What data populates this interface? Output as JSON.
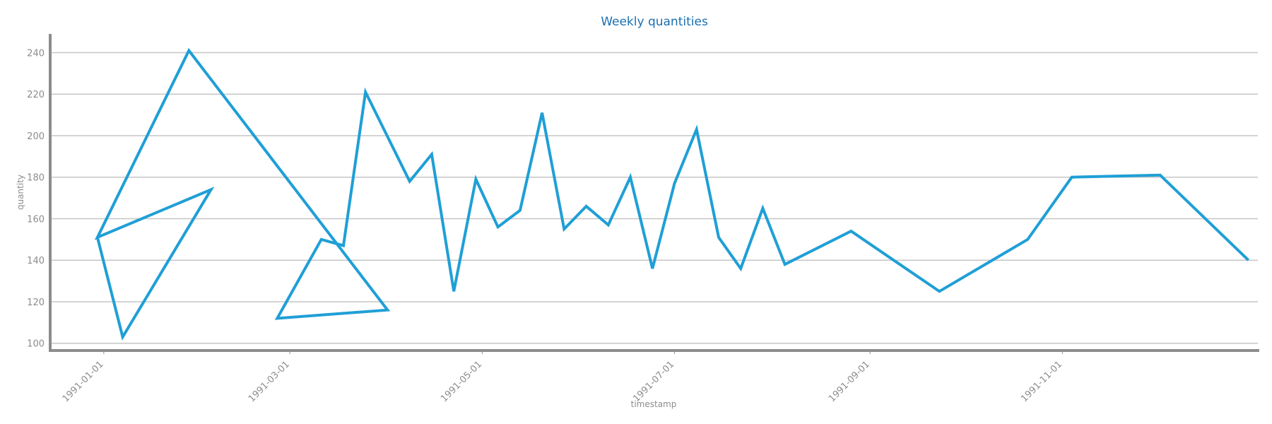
{
  "colors": {
    "series": "#1f9fd6",
    "title": "#1a70b0",
    "axis": "#8c8c8c",
    "grid": "#c6c6c6"
  },
  "chart_data": {
    "type": "line",
    "title": "Weekly quantities",
    "xlabel": "timestamp",
    "ylabel": "quantity",
    "x_axis_kind": "date",
    "xlim": [
      "1990-12-15",
      "1992-01-02"
    ],
    "ylim": [
      96.5,
      249
    ],
    "grid": "horizontal",
    "legend": "none",
    "x_ticks": [
      "1991-01-01",
      "1991-03-01",
      "1991-05-01",
      "1991-07-01",
      "1991-09-01",
      "1991-11-01"
    ],
    "y_ticks": [
      100,
      120,
      140,
      160,
      180,
      200,
      220,
      240
    ],
    "series": [
      {
        "x": [
          "1990-12-30",
          "1991-01-07",
          "1991-01-28",
          "1991-02-04",
          "1991-02-25",
          "1991-03-11",
          "1991-03-18",
          "1991-03-25",
          "1991-04-01",
          "1991-04-08",
          "1991-04-15",
          "1991-04-22",
          "1991-04-29",
          "1991-05-06",
          "1991-05-13",
          "1991-05-20",
          "1991-05-27",
          "1991-06-03",
          "1991-06-10",
          "1991-06-17",
          "1991-06-24",
          "1991-07-01",
          "1991-07-08",
          "1991-07-15",
          "1991-07-22",
          "1991-07-29",
          "1991-08-05",
          "1991-08-26",
          "1991-09-23",
          "1991-10-21",
          "1991-11-04",
          "1991-12-02",
          "1991-12-30"
        ],
        "y": [
          151,
          103,
          241,
          174,
          112,
          150,
          147,
          221,
          116,
          178,
          191,
          125,
          179,
          156,
          164,
          211,
          155,
          166,
          157,
          180,
          136,
          177,
          203,
          151,
          136,
          165,
          138,
          154,
          125,
          150,
          180,
          181,
          140
        ],
        "draw_order": [
          0,
          1,
          3,
          0,
          2,
          8,
          4,
          5,
          6,
          7,
          9,
          10,
          11,
          12,
          13,
          14,
          15,
          16,
          17,
          18,
          19,
          20,
          21,
          22,
          23,
          24,
          25,
          26,
          27,
          28,
          29,
          30,
          31,
          32
        ]
      }
    ]
  }
}
